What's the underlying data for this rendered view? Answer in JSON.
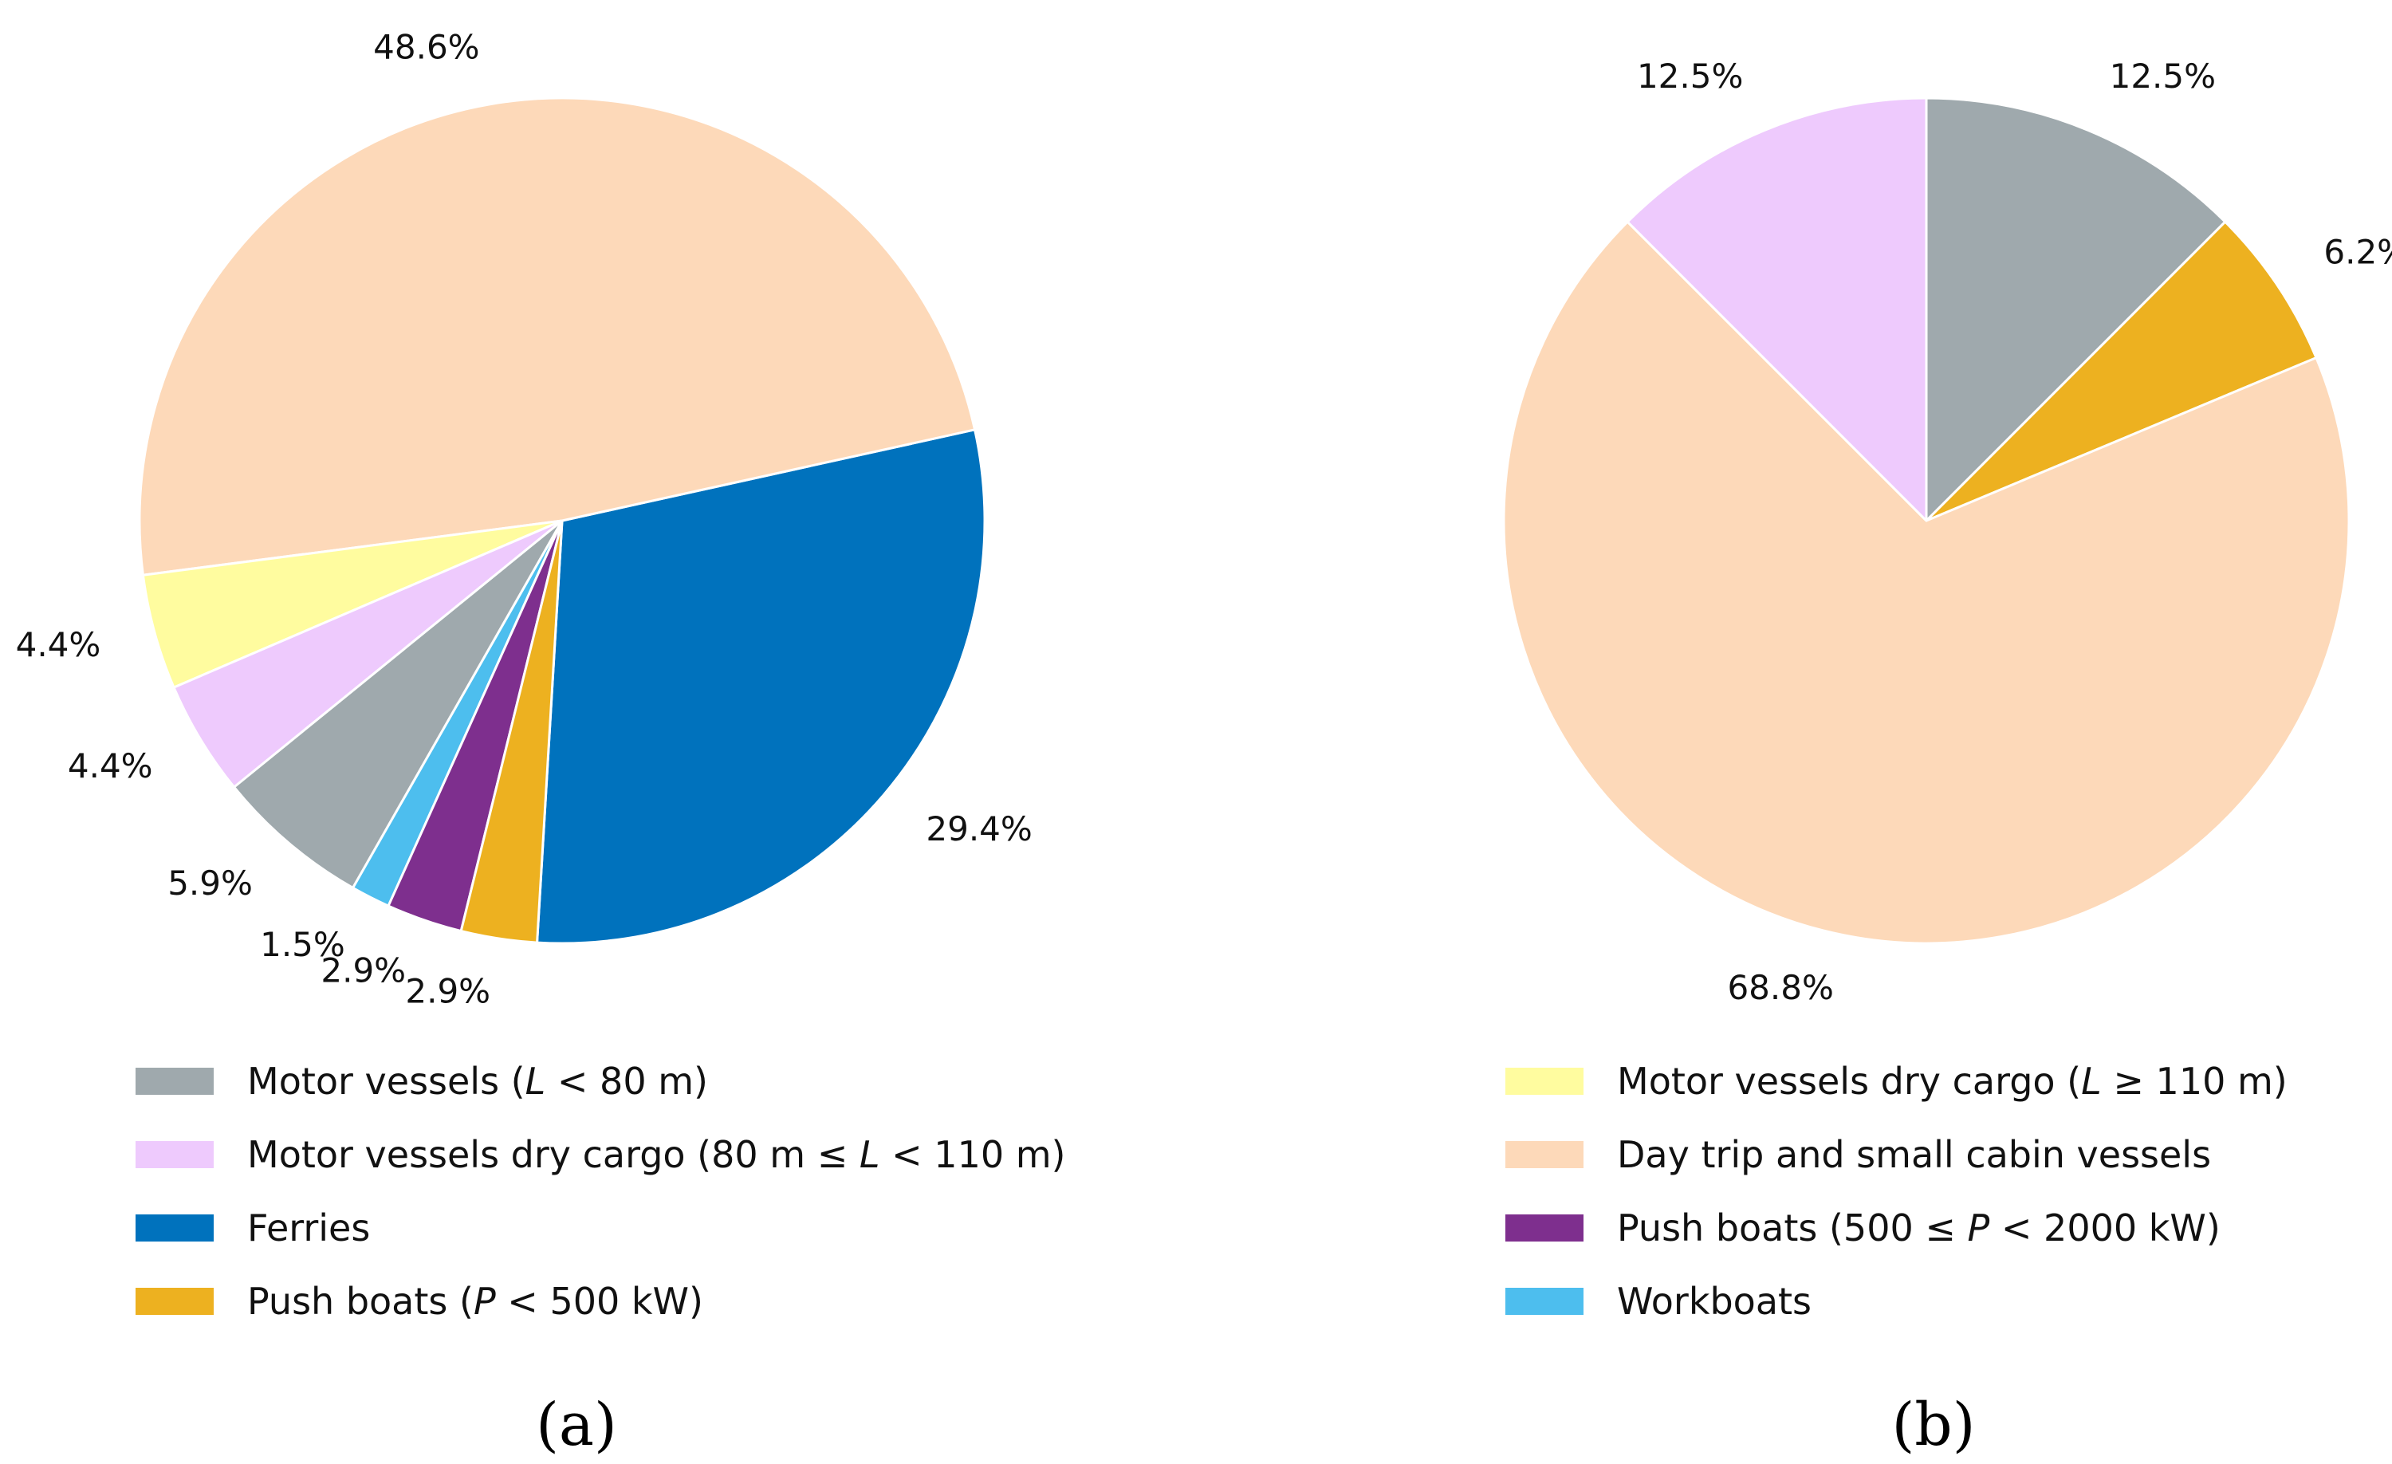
{
  "chart_data": [
    {
      "type": "pie",
      "panel_label": "(a)",
      "start": "top, counter-clockwise from lower-left ordering",
      "slices": [
        {
          "category": "Ferries",
          "value": 29.4,
          "label": "29.4%",
          "color": "#0072bd"
        },
        {
          "category": "Day trip and small cabin vessels",
          "value": 48.6,
          "label": "48.6%",
          "color": "#fdd9b9"
        },
        {
          "category": "Motor vessels dry cargo (L ≥ 110 m)",
          "value": 4.4,
          "label": "4.4%",
          "color": "#fffc9f"
        },
        {
          "category": "Motor vessels dry cargo (80 m ≤ L < 110 m)",
          "value": 4.4,
          "label": "4.4%",
          "color": "#eecafd"
        },
        {
          "category": "Motor vessels (L < 80 m)",
          "value": 5.9,
          "label": "5.9%",
          "color": "#9fa9ad"
        },
        {
          "category": "Workboats",
          "value": 1.5,
          "label": "1.5%",
          "color": "#4dbeee"
        },
        {
          "category": "Push boats (500 ≤ P < 2000 kW)",
          "value": 2.9,
          "label": "2.9%",
          "color": "#7e2f8e"
        },
        {
          "category": "Push boats (P < 500 kW)",
          "value": 2.9,
          "label": "2.9%",
          "color": "#edb120"
        }
      ]
    },
    {
      "type": "pie",
      "panel_label": "(b)",
      "slices": [
        {
          "category": "Motor vessels (L < 80 m)",
          "value": 12.5,
          "label": "12.5%",
          "color": "#9fa9ad"
        },
        {
          "category": "Push boats (P < 500 kW)",
          "value": 6.2,
          "label": "6.2%",
          "color": "#edb120"
        },
        {
          "category": "Day trip and small cabin vessels",
          "value": 68.8,
          "label": "68.8%",
          "color": "#fdd9b9"
        },
        {
          "category": "Motor vessels dry cargo (80 m ≤ L < 110 m)",
          "value": 12.5,
          "label": "12.5%",
          "color": "#eecafd"
        }
      ]
    }
  ],
  "legend": {
    "left": [
      {
        "pre": "Motor vessels (",
        "var": "L",
        "post": " < 80 m)",
        "color": "#9fa9ad"
      },
      {
        "pre": "Motor vessels dry cargo (80 m ≤ ",
        "var": "L",
        "post": " < 110 m)",
        "color": "#eecafd"
      },
      {
        "pre": "Ferries",
        "var": "",
        "post": "",
        "color": "#0072bd"
      },
      {
        "pre": "Push boats (",
        "var": "P",
        "post": " < 500 kW)",
        "color": "#edb120"
      }
    ],
    "right": [
      {
        "pre": "Motor vessels dry cargo (",
        "var": "L",
        "post": " ≥ 110 m)",
        "color": "#fffc9f"
      },
      {
        "pre": "Day trip and small cabin vessels",
        "var": "",
        "post": "",
        "color": "#fdd9b9"
      },
      {
        "pre": "Push boats (500 ≤ ",
        "var": "P",
        "post": " < 2000 kW)",
        "color": "#7e2f8e"
      },
      {
        "pre": "Workboats",
        "var": "",
        "post": "",
        "color": "#4dbeee"
      }
    ]
  }
}
